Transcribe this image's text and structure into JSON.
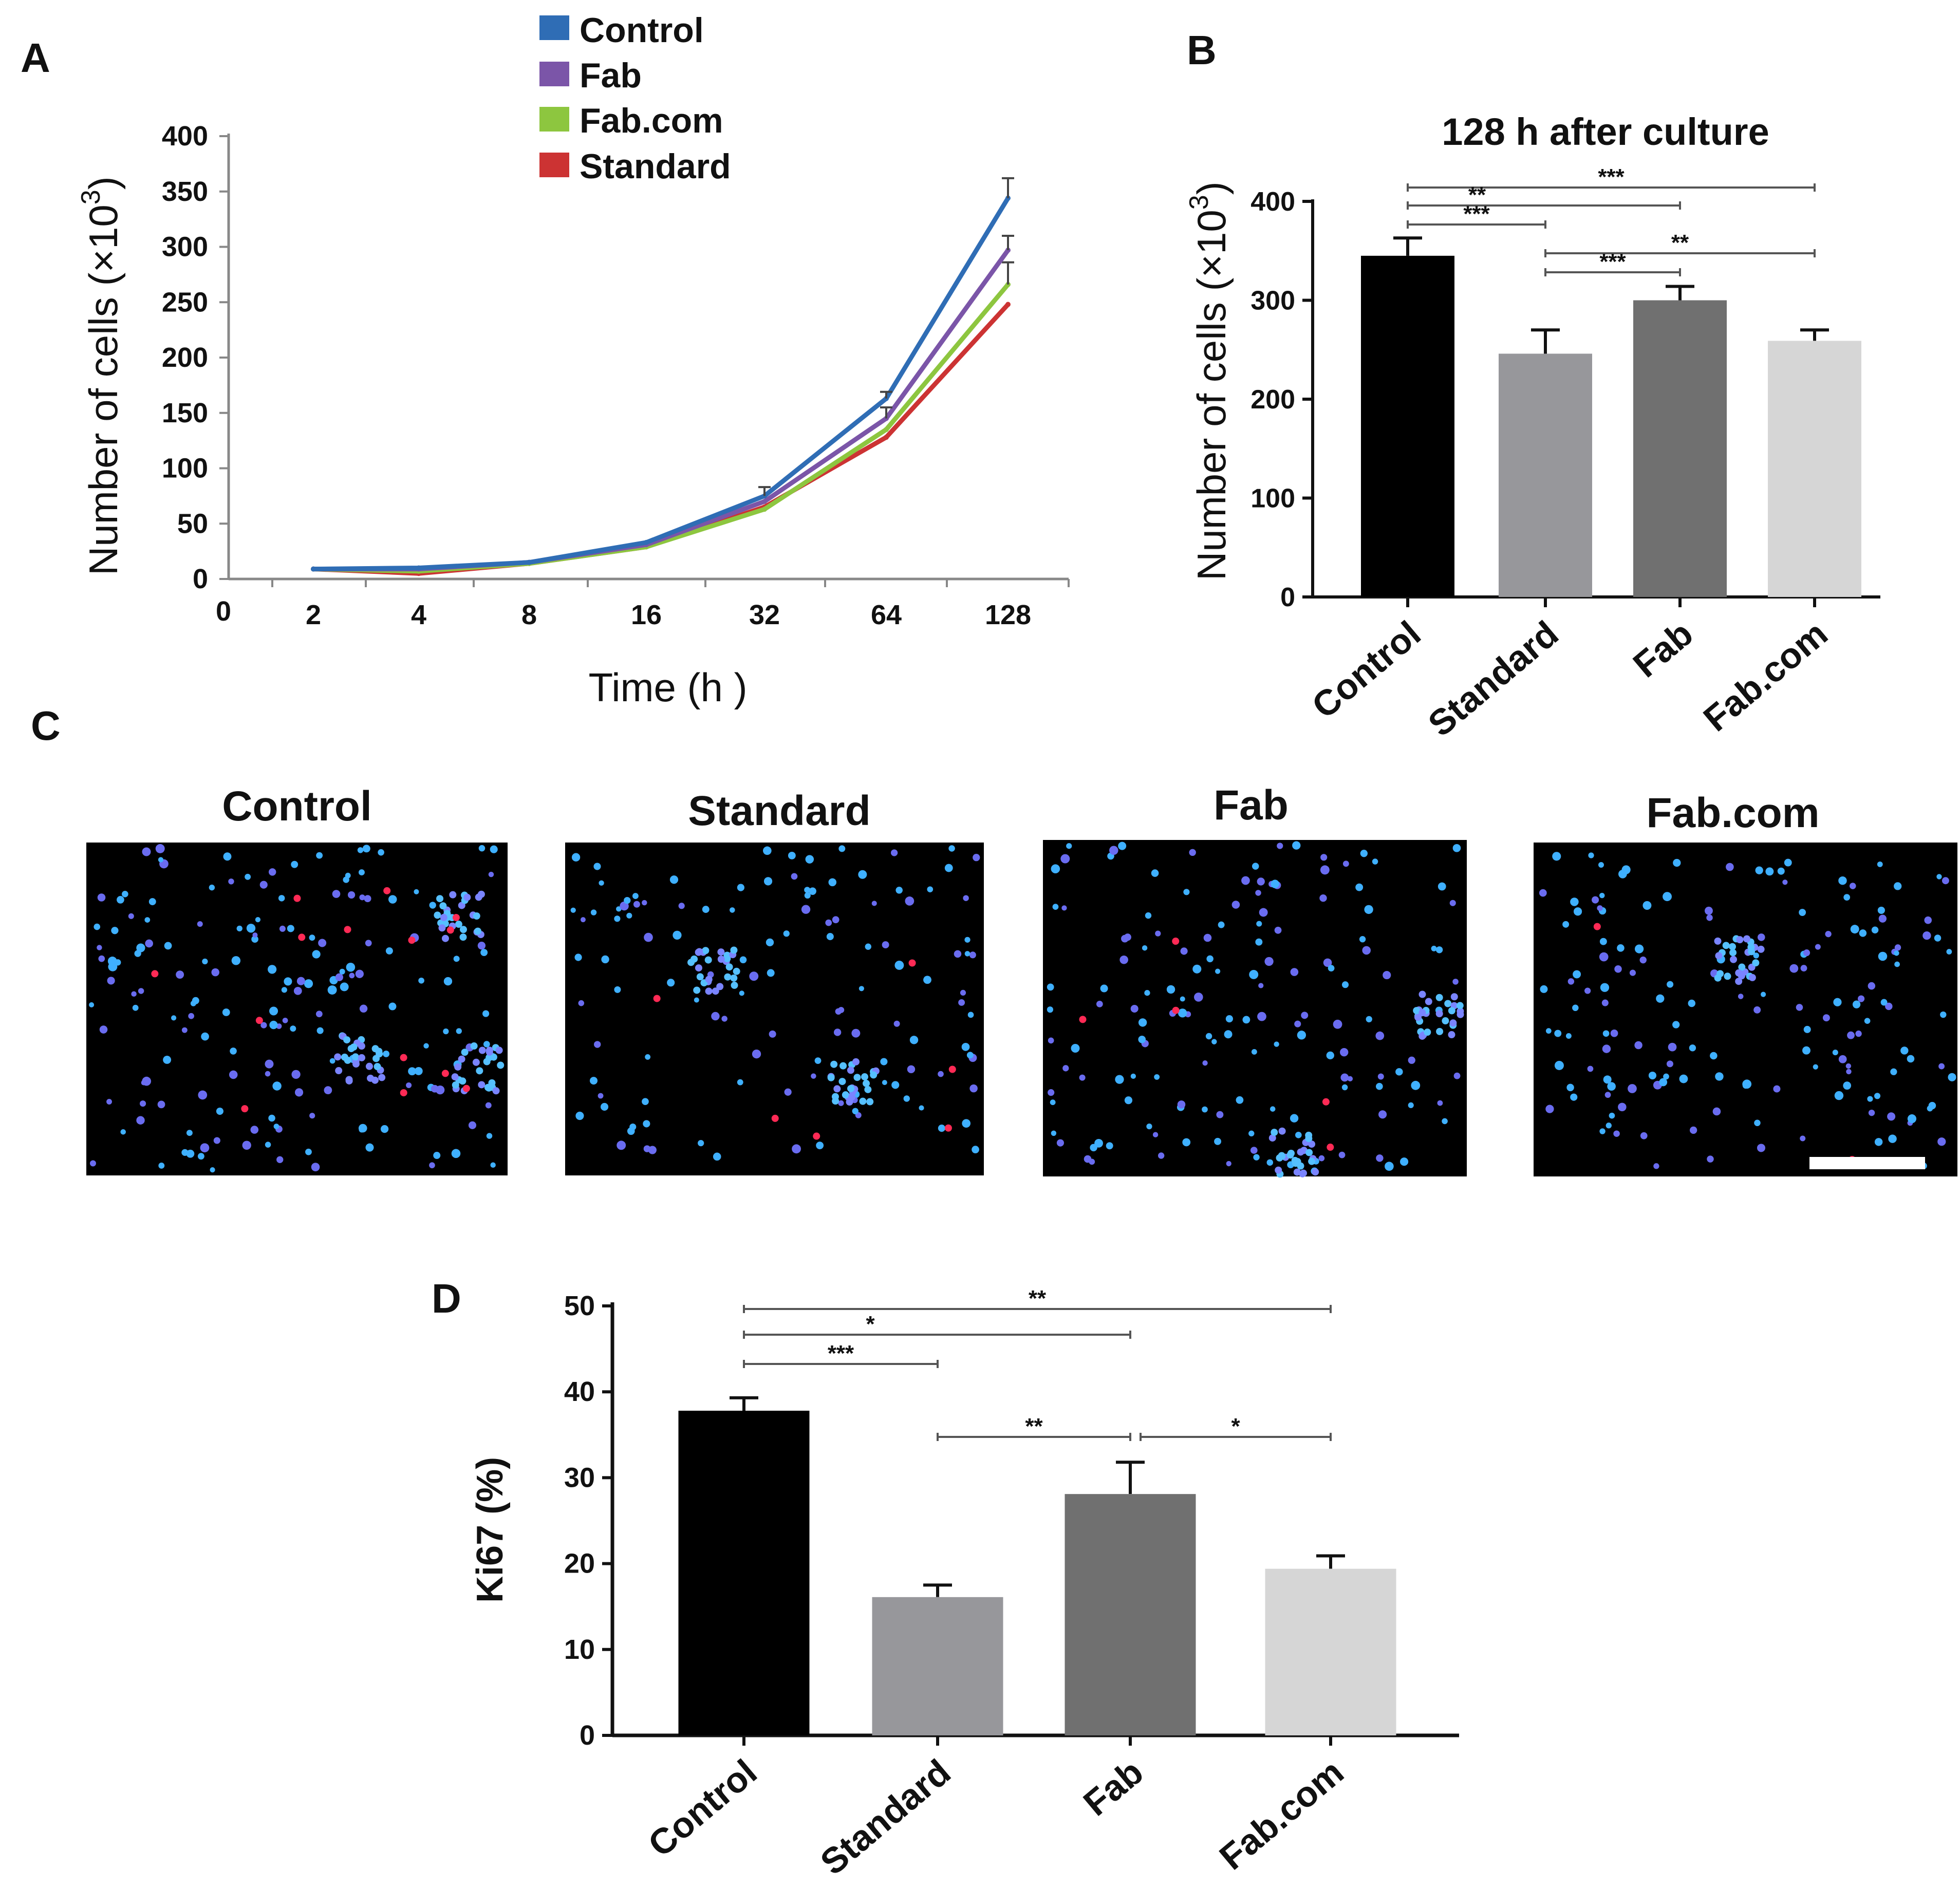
{
  "panels": {
    "a": {
      "letter": "A"
    },
    "b": {
      "letter": "B"
    },
    "c": {
      "letter": "C"
    },
    "d": {
      "letter": "D"
    }
  },
  "colors": {
    "control_line": "#2f6db5",
    "fab_line": "#7b55a8",
    "fabcom_line": "#8dc63f",
    "standard_line": "#cc3333",
    "bar_control": "#000000",
    "bar_standard": "#97979b",
    "bar_fab": "#707070",
    "bar_fabcom": "#d6d6d6"
  },
  "images": {
    "titles": [
      "Control",
      "Standard",
      "Fab",
      "Fab.com"
    ],
    "icon": "fluorescence-micrograph"
  },
  "chart_data": [
    {
      "id": "A",
      "type": "line",
      "ylabel": "Number of cells (×10",
      "ylabel_sup": "3",
      "ylabel_close": ")",
      "xlabel": "Time (h )",
      "x_origin_label": "0",
      "categories": [
        "2",
        "4",
        "8",
        "16",
        "32",
        "64",
        "128"
      ],
      "ylim": [
        0,
        400
      ],
      "yticks": [
        "0",
        "50",
        "100",
        "150",
        "200",
        "250",
        "300",
        "350",
        "400"
      ],
      "legend_position": "top",
      "series": [
        {
          "name": "Control",
          "values": [
            9,
            10,
            15,
            33,
            75,
            163,
            344
          ],
          "errors": [
            0,
            0,
            0,
            0,
            8,
            6,
            18
          ]
        },
        {
          "name": "Fab",
          "values": [
            9,
            9,
            15,
            31,
            70,
            145,
            297
          ],
          "errors": [
            0,
            0,
            0,
            0,
            0,
            10,
            13
          ]
        },
        {
          "name": "Fab.com",
          "values": [
            9,
            7,
            14,
            29,
            63,
            135,
            266
          ],
          "errors": [
            0,
            0,
            0,
            0,
            0,
            0,
            20
          ]
        },
        {
          "name": "Standard",
          "values": [
            9,
            5,
            14,
            29,
            65,
            128,
            248
          ],
          "errors": [
            0,
            0,
            0,
            0,
            0,
            0,
            0
          ]
        }
      ]
    },
    {
      "id": "B",
      "type": "bar",
      "title": "128 h after culture",
      "ylabel": "Number of cells (×10",
      "ylabel_sup": "3",
      "ylabel_close": ")",
      "categories": [
        "Control",
        "Standard",
        "Fab",
        "Fab.com"
      ],
      "values": [
        345,
        246,
        300,
        259
      ],
      "errors": [
        18,
        24,
        14,
        11
      ],
      "ylim": [
        0,
        400
      ],
      "yticks": [
        "0",
        "100",
        "200",
        "300",
        "400"
      ],
      "significance": [
        {
          "from": 0,
          "to": 3,
          "label": "***"
        },
        {
          "from": 0,
          "to": 2,
          "label": "**"
        },
        {
          "from": 0,
          "to": 1,
          "label": "***"
        },
        {
          "from": 1,
          "to": 3,
          "label": "**"
        },
        {
          "from": 1,
          "to": 2,
          "label": "***"
        }
      ]
    },
    {
      "id": "D",
      "type": "bar",
      "ylabel": "Ki67 (%)",
      "categories": [
        "Control",
        "Standard",
        "Fab",
        "Fab.com"
      ],
      "values": [
        37.8,
        16.1,
        28.1,
        19.4
      ],
      "errors": [
        1.5,
        1.4,
        3.7,
        1.5
      ],
      "ylim": [
        0,
        50
      ],
      "yticks": [
        "0",
        "10",
        "20",
        "30",
        "40",
        "50"
      ],
      "significance": [
        {
          "from": 0,
          "to": 3,
          "label": "**"
        },
        {
          "from": 0,
          "to": 2,
          "label": "*"
        },
        {
          "from": 0,
          "to": 1,
          "label": "***"
        },
        {
          "from": 1,
          "to": 2,
          "label": "**"
        },
        {
          "from": 2,
          "to": 3,
          "label": "*"
        }
      ]
    }
  ]
}
